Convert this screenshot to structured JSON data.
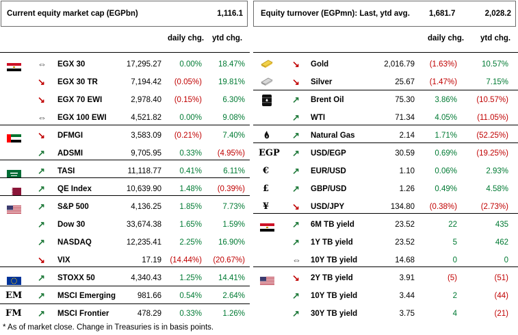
{
  "left": {
    "title": "Current equity market cap (EGPbn)",
    "value": "1,116.1",
    "col_daily": "daily chg.",
    "col_ytd": "ytd chg.",
    "rows": [
      {
        "name": "EGX 30",
        "price": "17,295.27",
        "daily": "0.00%",
        "ytd": "18.47%",
        "dir": "flat",
        "icon": "egypt-flag-icon"
      },
      {
        "name": "EGX 30 TR",
        "price": "7,194.42",
        "daily": "(0.05%)",
        "ytd": "19.81%",
        "dir": "down",
        "icon": ""
      },
      {
        "name": "EGX 70 EWI",
        "price": "2,978.40",
        "daily": "(0.15%)",
        "ytd": "6.30%",
        "dir": "down",
        "icon": ""
      },
      {
        "name": "EGX 100 EWI",
        "price": "4,521.82",
        "daily": "0.00%",
        "ytd": "9.08%",
        "dir": "flat",
        "icon": ""
      },
      {
        "name": "DFMGI",
        "price": "3,583.09",
        "daily": "(0.21%)",
        "ytd": "7.40%",
        "dir": "down",
        "icon": "uae-flag-icon"
      },
      {
        "name": "ADSMI",
        "price": "9,705.95",
        "daily": "0.33%",
        "ytd": "(4.95%)",
        "dir": "up",
        "icon": ""
      },
      {
        "name": "TASI",
        "price": "11,118.77",
        "daily": "0.41%",
        "ytd": "6.11%",
        "dir": "up",
        "icon": "saudi-flag-icon"
      },
      {
        "name": "QE Index",
        "price": "10,639.90",
        "daily": "1.48%",
        "ytd": "(0.39%)",
        "dir": "up",
        "icon": "qatar-flag-icon"
      },
      {
        "name": "S&P 500",
        "price": "4,136.25",
        "daily": "1.85%",
        "ytd": "7.73%",
        "dir": "up",
        "icon": "us-flag-icon"
      },
      {
        "name": "Dow 30",
        "price": "33,674.38",
        "daily": "1.65%",
        "ytd": "1.59%",
        "dir": "up",
        "icon": ""
      },
      {
        "name": "NASDAQ",
        "price": "12,235.41",
        "daily": "2.25%",
        "ytd": "16.90%",
        "dir": "up",
        "icon": ""
      },
      {
        "name": "VIX",
        "price": "17.19",
        "daily": "(14.44%)",
        "ytd": "(20.67%)",
        "dir": "down",
        "icon": ""
      },
      {
        "name": "STOXX 50",
        "price": "4,340.43",
        "daily": "1.25%",
        "ytd": "14.41%",
        "dir": "up",
        "icon": "eu-flag-icon"
      },
      {
        "name": "MSCI Emerging",
        "price": "981.66",
        "daily": "0.54%",
        "ytd": "2.64%",
        "dir": "up",
        "icon": "EM"
      },
      {
        "name": "MSCI Frontier",
        "price": "478.29",
        "daily": "0.33%",
        "ytd": "1.26%",
        "dir": "up",
        "icon": "FM"
      }
    ]
  },
  "right": {
    "title": "Equity turnover (EGPmn): Last, ytd avg.",
    "value_last": "1,681.7",
    "value_avg": "2,028.2",
    "col_daily": "daily chg.",
    "col_ytd": "ytd chg.",
    "rows": [
      {
        "name": "Gold",
        "price": "2,016.79",
        "daily": "(1.63%)",
        "ytd": "10.57%",
        "dir": "down",
        "icon": "gold-bar-icon"
      },
      {
        "name": "Silver",
        "price": "25.67",
        "daily": "(1.47%)",
        "ytd": "7.15%",
        "dir": "down",
        "icon": "silver-bar-icon"
      },
      {
        "name": "Brent Oil",
        "price": "75.30",
        "daily": "3.86%",
        "ytd": "(10.57%)",
        "dir": "up",
        "icon": "oil-barrel-icon"
      },
      {
        "name": "WTI",
        "price": "71.34",
        "daily": "4.05%",
        "ytd": "(11.05%)",
        "dir": "up",
        "icon": ""
      },
      {
        "name": "Natural Gas",
        "price": "2.14",
        "daily": "1.71%",
        "ytd": "(52.25%)",
        "dir": "up",
        "icon": "flame-icon"
      },
      {
        "name": "USD/EGP",
        "price": "30.59",
        "daily": "0.69%",
        "ytd": "(19.25%)",
        "dir": "up",
        "icon": "EGP"
      },
      {
        "name": "EUR/USD",
        "price": "1.10",
        "daily": "0.06%",
        "ytd": "2.93%",
        "dir": "up",
        "icon": "€"
      },
      {
        "name": "GBP/USD",
        "price": "1.26",
        "daily": "0.49%",
        "ytd": "4.58%",
        "dir": "up",
        "icon": "£"
      },
      {
        "name": "USD/JPY",
        "price": "134.80",
        "daily": "(0.38%)",
        "ytd": "(2.73%)",
        "dir": "down",
        "icon": "¥"
      },
      {
        "name": "6M TB yield",
        "price": "23.52",
        "daily": "22",
        "ytd": "435",
        "dir": "up",
        "icon": "egypt-flag-icon"
      },
      {
        "name": "1Y TB yield",
        "price": "23.52",
        "daily": "5",
        "ytd": "462",
        "dir": "up",
        "icon": ""
      },
      {
        "name": "10Y TB yield",
        "price": "14.68",
        "daily": "0",
        "ytd": "0",
        "dir": "flat",
        "icon": ""
      },
      {
        "name": "2Y TB yield",
        "price": "3.91",
        "daily": "(5)",
        "ytd": "(51)",
        "dir": "down",
        "icon": "us-flag-icon"
      },
      {
        "name": "10Y TB yield",
        "price": "3.44",
        "daily": "2",
        "ytd": "(44)",
        "dir": "up",
        "icon": ""
      },
      {
        "name": "30Y TB yield",
        "price": "3.75",
        "daily": "4",
        "ytd": "(21)",
        "dir": "up",
        "icon": ""
      }
    ]
  },
  "footnote": "* As of market close. Change in Treasuries is in basis points."
}
